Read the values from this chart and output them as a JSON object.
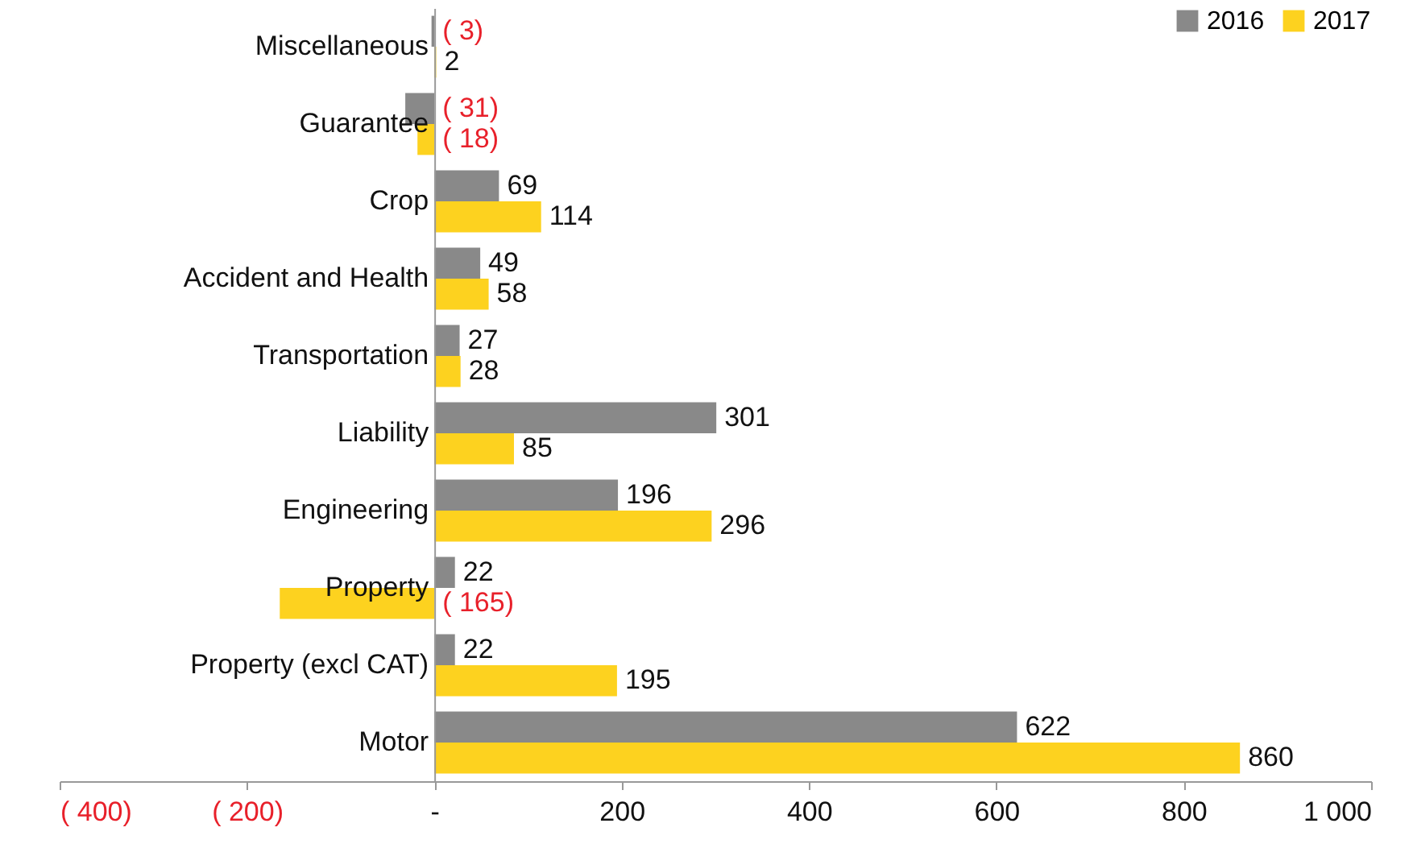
{
  "chart_data": {
    "type": "bar",
    "orientation": "horizontal",
    "categories": [
      "Miscellaneous",
      "Guarantee",
      "Crop",
      "Accident and Health",
      "Transportation",
      "Liability",
      "Engineering",
      "Property",
      "Property (excl CAT)",
      "Motor"
    ],
    "series": [
      {
        "name": "2016",
        "color": "#898989",
        "values": [
          -3,
          -31,
          69,
          49,
          27,
          301,
          196,
          22,
          22,
          622
        ],
        "value_labels": [
          "( 3)",
          "( 31)",
          "69",
          "49",
          "27",
          "301",
          "196",
          "22",
          "22",
          "622"
        ]
      },
      {
        "name": "2017",
        "color": "#fdd21f",
        "values": [
          2,
          -18,
          114,
          58,
          28,
          85,
          296,
          -165,
          195,
          860
        ],
        "value_labels": [
          "2",
          "( 18)",
          "114",
          "58",
          "28",
          "85",
          "296",
          "( 165)",
          "195",
          "860"
        ]
      }
    ],
    "xlim": [
      -400,
      1000
    ],
    "xticks": [
      {
        "value": -400,
        "label": "( 400)"
      },
      {
        "value": -200,
        "label": "( 200)"
      },
      {
        "value": 0,
        "label": "-"
      },
      200,
      400,
      600,
      800,
      {
        "value": 1000,
        "label": "1 000"
      }
    ],
    "legend": "top right",
    "grid": false
  }
}
